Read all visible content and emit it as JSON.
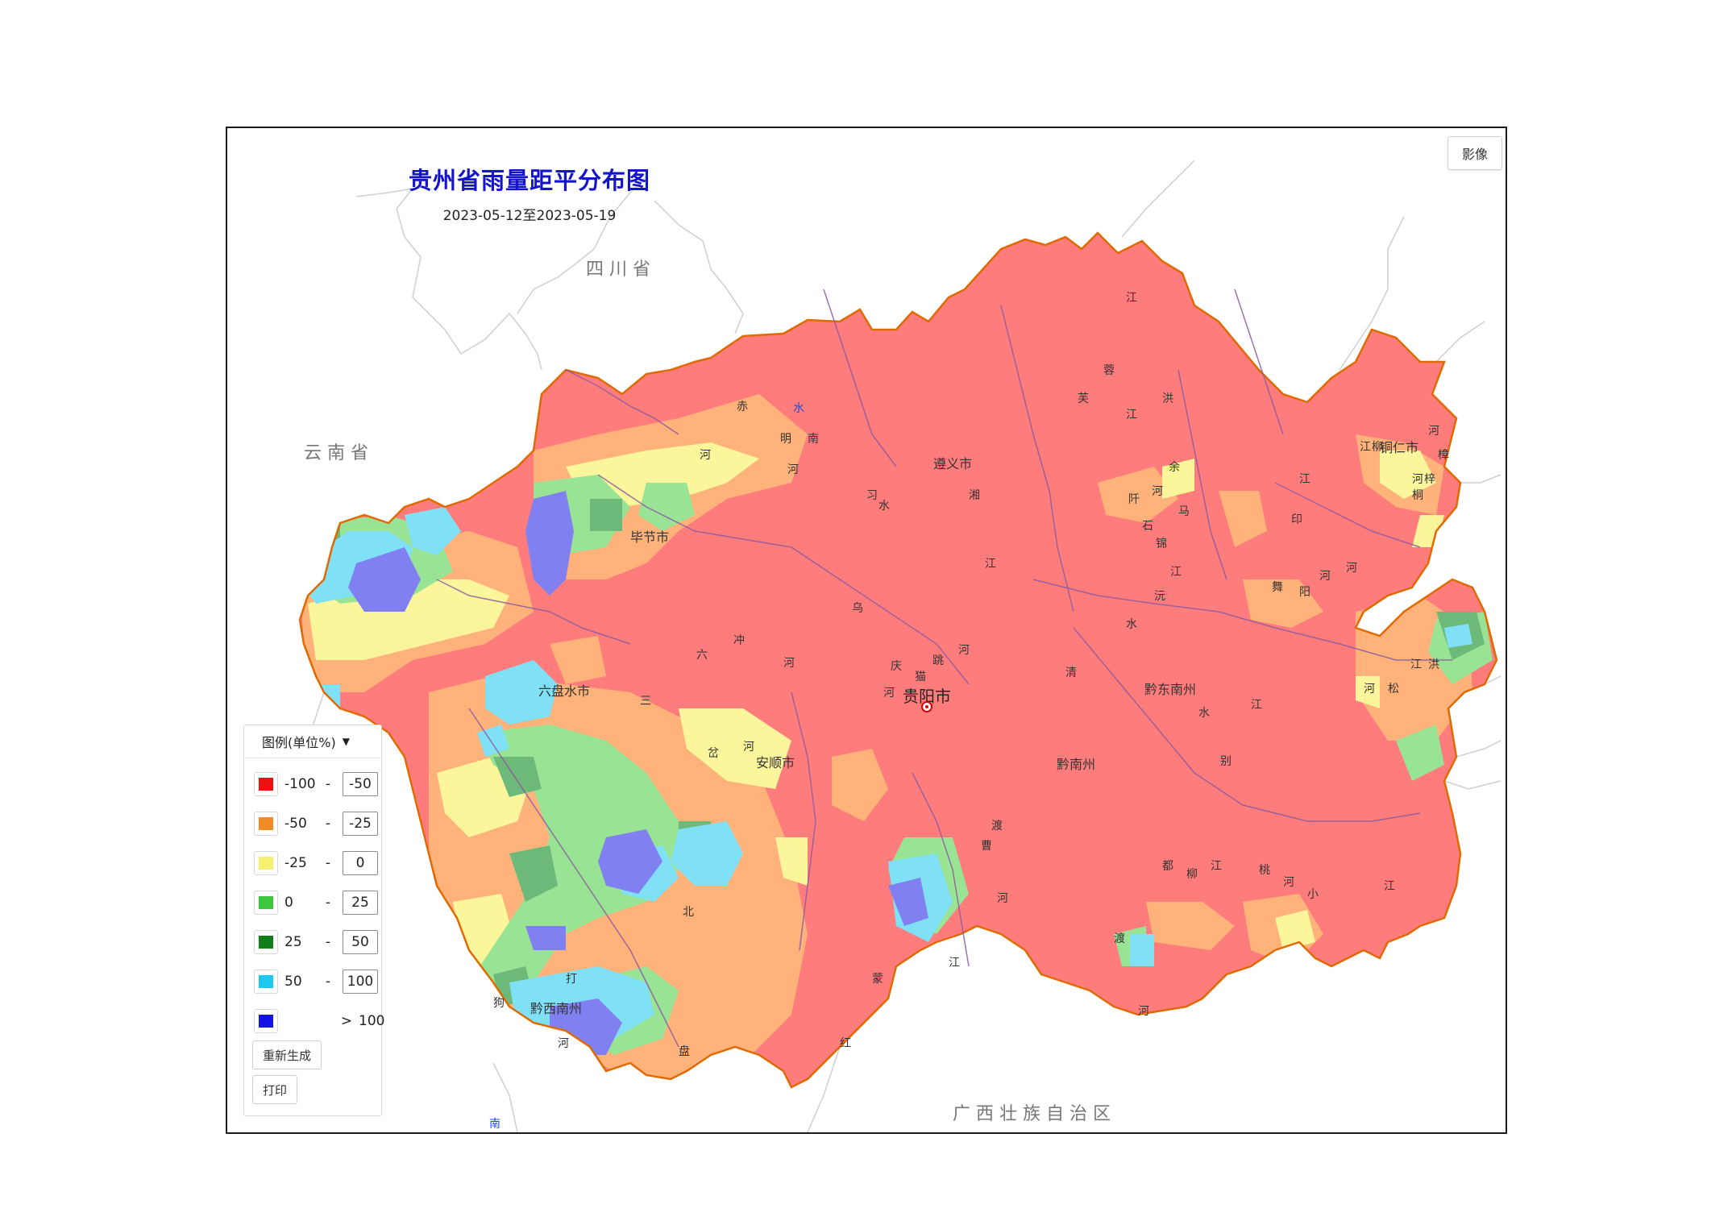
{
  "title": "贵州省雨量距平分布图",
  "subtitle": "2023-05-12至2023-05-19",
  "imagery_button": "影像",
  "neighbor_labels": {
    "sichuan": "四 川 省",
    "yunnan": "云 南 省",
    "guangxi": "广 西 壮 族 自 治 区"
  },
  "cities": {
    "guiyang": "贵阳市",
    "zunyi": "遵义市",
    "tongren": "铜仁市",
    "bijie": "毕节市",
    "liupanshui": "六盘水市",
    "anshun": "安顺市",
    "qiandongnan": "黔东南州",
    "qiannan": "黔南州",
    "qianxinan": "黔西南州"
  },
  "river_chars": [
    "赤",
    "水",
    "河",
    "江",
    "乌",
    "北",
    "盘",
    "红",
    "南",
    "清",
    "水",
    "江",
    "舞",
    "阳",
    "河",
    "都",
    "柳",
    "江",
    "湘",
    "江",
    "洪",
    "渡",
    "河",
    "芙",
    "蓉",
    "江",
    "印",
    "江",
    "六",
    "冲",
    "河",
    "三",
    "岔",
    "河",
    "蒙",
    "江",
    "曹",
    "渡",
    "河",
    "打",
    "狗",
    "河",
    "马",
    "别",
    "河",
    "锦",
    "江",
    "沅",
    "水",
    "石",
    "阡",
    "河",
    "余",
    "庆",
    "河",
    "猫",
    "跳",
    "河",
    "南",
    "明",
    "河",
    "习",
    "水",
    "河",
    "桐",
    "梓",
    "河",
    "松",
    "桃",
    "河",
    "小",
    "江",
    "柳",
    "江",
    "洪",
    "河",
    "樟",
    "江"
  ],
  "legend": {
    "header": "图例(单位%)",
    "rows": [
      {
        "color": "#ee1111",
        "low": "-100",
        "dash": "-",
        "high": "-50"
      },
      {
        "color": "#f08a24",
        "low": "-50",
        "dash": "-",
        "high": "-25"
      },
      {
        "color": "#f5f070",
        "low": "-25",
        "dash": "-",
        "high": "0"
      },
      {
        "color": "#3cc83c",
        "low": "0",
        "dash": "-",
        "high": "25"
      },
      {
        "color": "#0f7f1a",
        "low": "25",
        "dash": "-",
        "high": "50"
      },
      {
        "color": "#1ec8ee",
        "low": "50",
        "dash": "-",
        "high": "100"
      },
      {
        "color": "#1414e6",
        "low": "",
        "dash": ">",
        "high": "100"
      }
    ],
    "regenerate_label": "重新生成",
    "print_label": "打印"
  },
  "colors": {
    "deficit_severe": "#ff7c7c",
    "deficit_moderate": "#ffb27a",
    "near_normal": "#fbf59c",
    "surplus": "#98e394",
    "surplus_high": "#6cb97a",
    "surplus_very": "#7fe0f6",
    "surplus_extreme": "#8080f0",
    "boundary": "#e06a00",
    "river": "#8c5aa0",
    "neighbor_border": "#c8c8c8"
  }
}
